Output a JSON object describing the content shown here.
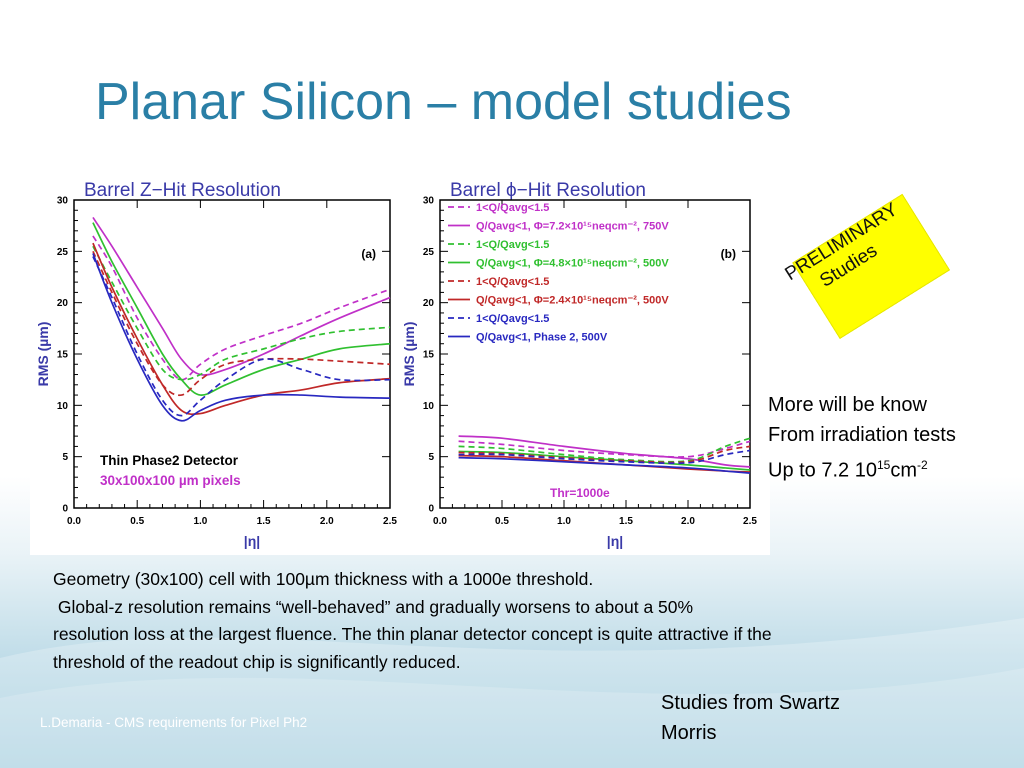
{
  "slide": {
    "title": "Planar Silicon – model studies",
    "preliminary": [
      "PRELIMINARY",
      "Studies"
    ],
    "note_lines": [
      "More will be know",
      "From irradiation tests"
    ],
    "note_fluence": {
      "prefix": "Up to 7.2 10",
      "exp": "15",
      "unit": "cm",
      "unit_exp": "-2"
    },
    "body_lines": [
      "Geometry (30x100) cell with 100µm thickness with a 1000e threshold.",
      " Global-z resolution remains “well-behaved” and gradually worsens to about a 50%",
      "resolution loss at the largest fluence. The thin planar detector concept is quite attractive if the",
      "threshold of the readout chip is significantly reduced."
    ],
    "credits": [
      "Studies from Swartz",
      "Morris"
    ],
    "footer": "L.Demaria - CMS requirements for Pixel Ph2"
  },
  "colors": {
    "title": "#2a7fa6",
    "plot_title": "#3a3aa8",
    "magenta": "#c030c8",
    "green": "#30c030",
    "red": "#c02828",
    "blue": "#2828c0",
    "highlight": "#ffff00"
  },
  "chart_data": [
    {
      "type": "line",
      "title": "Barrel Z−Hit Resolution",
      "panel_label": "(a)",
      "xlabel": "|η|",
      "ylabel": "RMS (µm)",
      "xlim": [
        0,
        2.5
      ],
      "ylim": [
        0,
        30
      ],
      "xticks": [
        "0.0",
        "0.5",
        "1.0",
        "1.5",
        "2.0",
        "2.5"
      ],
      "yticks": [
        "0",
        "5",
        "10",
        "15",
        "20",
        "25",
        "30"
      ],
      "annotations": [
        "Thin Phase2 Detector",
        "30x100x100 µm pixels"
      ],
      "x": [
        0.15,
        0.3,
        0.5,
        0.7,
        0.85,
        1.0,
        1.2,
        1.5,
        1.8,
        2.1,
        2.5
      ],
      "series": [
        {
          "color": "magenta",
          "dash": false,
          "values": [
            28.3,
            25.5,
            21.5,
            17.5,
            14.5,
            13.0,
            13.5,
            15.0,
            16.8,
            18.5,
            20.5
          ]
        },
        {
          "color": "magenta",
          "dash": true,
          "values": [
            26.5,
            23.5,
            18.5,
            14.5,
            12.5,
            14.0,
            15.5,
            16.8,
            18.0,
            19.5,
            21.3
          ]
        },
        {
          "color": "green",
          "dash": false,
          "values": [
            27.8,
            24.0,
            19.5,
            15.0,
            12.5,
            11.0,
            12.0,
            13.5,
            14.5,
            15.5,
            16.0
          ]
        },
        {
          "color": "green",
          "dash": true,
          "values": [
            25.5,
            22.0,
            17.5,
            13.5,
            12.5,
            13.0,
            14.5,
            15.5,
            16.5,
            17.2,
            17.6
          ]
        },
        {
          "color": "red",
          "dash": false,
          "values": [
            25.8,
            21.5,
            16.5,
            12.0,
            9.5,
            9.2,
            10.0,
            11.0,
            11.5,
            12.2,
            12.6
          ]
        },
        {
          "color": "red",
          "dash": true,
          "values": [
            25.0,
            21.0,
            16.0,
            12.0,
            11.0,
            12.5,
            14.0,
            14.5,
            14.5,
            14.3,
            14.0
          ]
        },
        {
          "color": "blue",
          "dash": false,
          "values": [
            24.8,
            20.0,
            14.5,
            10.0,
            8.5,
            9.5,
            10.5,
            11.0,
            11.0,
            10.8,
            10.7
          ]
        },
        {
          "color": "blue",
          "dash": true,
          "values": [
            24.5,
            20.5,
            15.0,
            10.5,
            9.0,
            10.5,
            12.5,
            14.5,
            13.5,
            12.5,
            12.5
          ]
        }
      ]
    },
    {
      "type": "line",
      "title": "Barrel ϕ−Hit Resolution",
      "panel_label": "(b)",
      "xlabel": "|η|",
      "ylabel": "RMS (µm)",
      "xlim": [
        0,
        2.5
      ],
      "ylim": [
        0,
        30
      ],
      "xticks": [
        "0.0",
        "0.5",
        "1.0",
        "1.5",
        "2.0",
        "2.5"
      ],
      "yticks": [
        "0",
        "5",
        "10",
        "15",
        "20",
        "25",
        "30"
      ],
      "annotations": [
        "Thr=1000e"
      ],
      "legend": [
        "1<Q/Qavg<1.5",
        "Q/Qavg<1, Φ=7.2×10¹⁵neqcm⁻², 750V",
        "1<Q/Qavg<1.5",
        "Q/Qavg<1, Φ=4.8×10¹⁵neqcm⁻², 500V",
        "1<Q/Qavg<1.5",
        "Q/Qavg<1, Φ=2.4×10¹⁵neqcm⁻², 500V",
        "1<Q/Qavg<1.5",
        "Q/Qavg<1, Phase 2, 500V"
      ],
      "x": [
        0.15,
        0.5,
        1.0,
        1.5,
        2.0,
        2.3,
        2.5
      ],
      "series": [
        {
          "color": "magenta",
          "dash": true,
          "values": [
            6.5,
            6.2,
            5.6,
            5.2,
            5.0,
            5.8,
            6.5
          ]
        },
        {
          "color": "magenta",
          "dash": false,
          "values": [
            7.0,
            6.8,
            6.0,
            5.3,
            4.8,
            4.2,
            4.0
          ]
        },
        {
          "color": "green",
          "dash": true,
          "values": [
            6.0,
            5.8,
            5.2,
            4.7,
            4.6,
            6.0,
            6.8
          ]
        },
        {
          "color": "green",
          "dash": false,
          "values": [
            5.5,
            5.4,
            5.0,
            4.6,
            4.2,
            3.9,
            3.7
          ]
        },
        {
          "color": "red",
          "dash": true,
          "values": [
            5.4,
            5.3,
            4.9,
            4.6,
            4.5,
            5.6,
            6.0
          ]
        },
        {
          "color": "red",
          "dash": false,
          "values": [
            5.1,
            5.0,
            4.6,
            4.2,
            3.8,
            3.6,
            3.5
          ]
        },
        {
          "color": "blue",
          "dash": true,
          "values": [
            5.2,
            5.2,
            4.8,
            4.5,
            4.4,
            5.2,
            5.6
          ]
        },
        {
          "color": "blue",
          "dash": false,
          "values": [
            4.9,
            4.8,
            4.5,
            4.2,
            3.9,
            3.6,
            3.4
          ]
        }
      ]
    }
  ]
}
